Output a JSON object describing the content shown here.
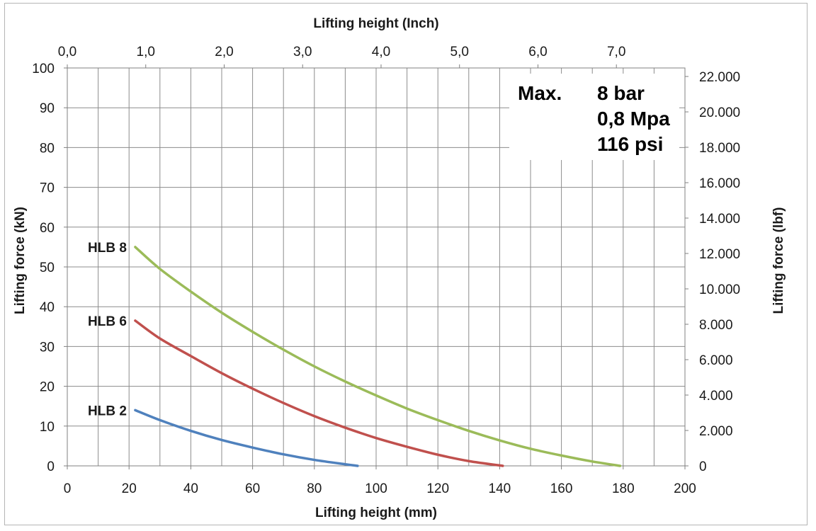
{
  "chart_data": {
    "type": "line",
    "xlabel_bottom": "Lifting height (mm)",
    "xlabel_top": "Lifting height (Inch)",
    "ylabel_left": "Lifting force (kN)",
    "ylabel_right": "Lifting force (lbf)",
    "xlim": [
      0,
      200
    ],
    "ylim": [
      0,
      100
    ],
    "x_ticks": [
      "0",
      "20",
      "40",
      "60",
      "80",
      "100",
      "120",
      "140",
      "160",
      "180",
      "200"
    ],
    "x_tick_values": [
      0,
      20,
      40,
      60,
      80,
      100,
      120,
      140,
      160,
      180,
      200
    ],
    "y_ticks": [
      "0",
      "10",
      "20",
      "30",
      "40",
      "50",
      "60",
      "70",
      "80",
      "90",
      "100"
    ],
    "y_tick_values": [
      0,
      10,
      20,
      30,
      40,
      50,
      60,
      70,
      80,
      90,
      100
    ],
    "x_top_ticks": [
      "0,0",
      "1,0",
      "2,0",
      "3,0",
      "4,0",
      "5,0",
      "6,0",
      "7,0"
    ],
    "x_top_tick_values": [
      0,
      1,
      2,
      3,
      4,
      5,
      6,
      7
    ],
    "y_right_ticks": [
      "0",
      "2.000",
      "4.000",
      "6.000",
      "8.000",
      "10.000",
      "12.000",
      "14.000",
      "16.000",
      "18.000",
      "20.000",
      "22.000"
    ],
    "y_right_tick_values": [
      0,
      2000,
      4000,
      6000,
      8000,
      10000,
      12000,
      14000,
      16000,
      18000,
      20000,
      22000
    ],
    "grid": true,
    "series": [
      {
        "name": "HLB 2",
        "color": "#4f81bd",
        "x": [
          22,
          30,
          40,
          50,
          60,
          70,
          80,
          90,
          94
        ],
        "y": [
          14,
          11.5,
          8.8,
          6.5,
          4.6,
          2.9,
          1.5,
          0.4,
          0
        ]
      },
      {
        "name": "HLB 6",
        "color": "#c0504d",
        "x": [
          22,
          30,
          40,
          50,
          60,
          70,
          80,
          90,
          100,
          110,
          120,
          130,
          141
        ],
        "y": [
          36.5,
          32,
          27.6,
          23.3,
          19.4,
          15.8,
          12.5,
          9.6,
          7,
          4.8,
          2.8,
          1.2,
          0
        ]
      },
      {
        "name": "HLB 8",
        "color": "#9bbb59",
        "x": [
          22,
          30,
          40,
          50,
          60,
          70,
          80,
          90,
          100,
          110,
          120,
          130,
          140,
          150,
          160,
          170,
          179
        ],
        "y": [
          55,
          49.5,
          43.8,
          38.5,
          33.7,
          29.2,
          25,
          21.2,
          17.7,
          14.4,
          11.5,
          8.8,
          6.4,
          4.3,
          2.6,
          1.1,
          0
        ]
      }
    ],
    "spec_box": {
      "label": "Max.",
      "values": [
        "8 bar",
        "0,8 Mpa",
        "116 psi"
      ]
    }
  }
}
